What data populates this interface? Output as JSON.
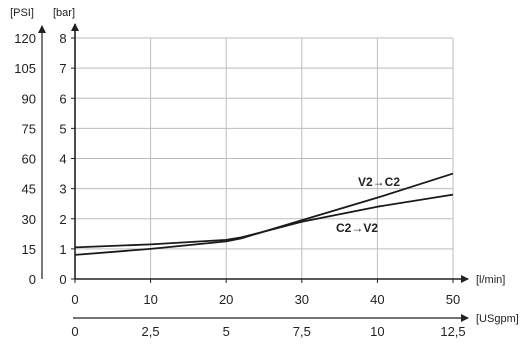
{
  "chart_data": {
    "type": "line",
    "y_axes": [
      {
        "unit_label": "[PSI]",
        "ticks": [
          "0",
          "15",
          "30",
          "45",
          "60",
          "75",
          "90",
          "105",
          "120"
        ]
      },
      {
        "unit_label": "[bar]",
        "ticks": [
          "0",
          "1",
          "2",
          "3",
          "4",
          "5",
          "6",
          "7",
          "8"
        ],
        "ylim": [
          0,
          8
        ]
      }
    ],
    "x_axes": [
      {
        "unit_label": "[l/min]",
        "ticks": [
          "0",
          "10",
          "20",
          "30",
          "40",
          "50"
        ],
        "xlim": [
          0,
          50
        ]
      },
      {
        "unit_label": "[USgpm]",
        "ticks": [
          "0",
          "2,5",
          "5",
          "7,5",
          "10",
          "12,5"
        ]
      }
    ],
    "grid": true,
    "series": [
      {
        "name": "V2→C2",
        "x": [
          0,
          10,
          20,
          22,
          30,
          40,
          50
        ],
        "y": [
          0.8,
          1.0,
          1.25,
          1.35,
          1.95,
          2.7,
          3.5
        ]
      },
      {
        "name": "C2→V2",
        "x": [
          0,
          10,
          20,
          22,
          30,
          40,
          50
        ],
        "y": [
          1.05,
          1.15,
          1.3,
          1.38,
          1.9,
          2.4,
          2.8
        ]
      }
    ]
  }
}
